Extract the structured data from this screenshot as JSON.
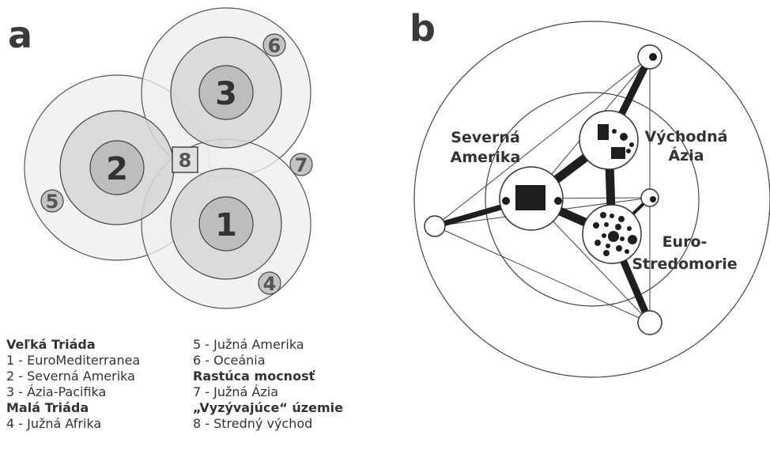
{
  "panel_a": {
    "letter": "a",
    "numbers": {
      "n1": "1",
      "n2": "2",
      "n3": "3",
      "n4": "4",
      "n5": "5",
      "n6": "6",
      "n7": "7",
      "n8": "8"
    }
  },
  "panel_b": {
    "letter": "b",
    "regions": {
      "north_america": [
        "Severná",
        "Amerika"
      ],
      "east_asia": [
        "Východná",
        "Ázia"
      ],
      "euro_med": [
        "Euro-",
        "Stredomorie"
      ]
    }
  },
  "legend": {
    "col1": [
      {
        "text": "Veľká Triáda",
        "heading": true
      },
      {
        "text": "1 - EuroMediterranea",
        "heading": false
      },
      {
        "text": "2 - Severná Amerika",
        "heading": false
      },
      {
        "text": "3 - Ázia-Pacifika",
        "heading": false
      },
      {
        "text": "Malá Triáda",
        "heading": true
      },
      {
        "text": "4 - Južná Afrika",
        "heading": false
      }
    ],
    "col2": [
      {
        "text": "5 - Južná Amerika",
        "heading": false
      },
      {
        "text": "6 - Oceánia",
        "heading": false
      },
      {
        "text": "Rastúca mocnosť",
        "heading": true
      },
      {
        "text": "7 - Južná Ázia",
        "heading": false
      },
      {
        "text": "„Vyzývajúce“ územie",
        "heading": true
      },
      {
        "text": "8 - Stredný východ",
        "heading": false
      }
    ]
  }
}
